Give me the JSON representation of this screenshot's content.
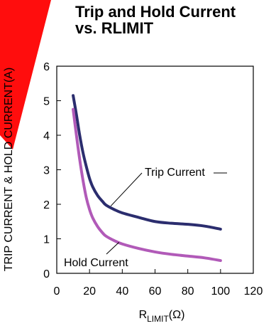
{
  "chart_data": {
    "type": "line",
    "title": "Trip and Hold Current vs. RLIMIT",
    "title_lines": [
      "Trip and Hold Current",
      "vs. RLIMIT"
    ],
    "xlabel_main": "R",
    "xlabel_sub": "LIMIT",
    "xlabel_unit": "(Ω)",
    "ylabel": "TRIP CURRENT & HOLD CURRENT(A)",
    "xlim": [
      0,
      120
    ],
    "ylim": [
      0,
      6
    ],
    "x_ticks": [
      0,
      20,
      40,
      60,
      80,
      100,
      120
    ],
    "y_ticks": [
      0,
      1,
      2,
      3,
      4,
      5,
      6
    ],
    "grid": false,
    "series": [
      {
        "name": "Trip Current",
        "color": "#2b2d6e",
        "x": [
          10,
          12,
          14,
          16,
          18,
          20,
          22,
          25,
          28,
          30,
          35,
          40,
          50,
          60,
          70,
          80,
          90,
          100
        ],
        "y": [
          5.15,
          4.6,
          4.0,
          3.5,
          3.1,
          2.75,
          2.5,
          2.25,
          2.08,
          1.98,
          1.85,
          1.75,
          1.62,
          1.5,
          1.45,
          1.42,
          1.37,
          1.28
        ]
      },
      {
        "name": "Hold Current",
        "color": "#b15ab8",
        "x": [
          10,
          12,
          14,
          16,
          18,
          20,
          22,
          25,
          28,
          30,
          35,
          40,
          50,
          60,
          70,
          80,
          90,
          100
        ],
        "y": [
          4.75,
          4.0,
          3.3,
          2.7,
          2.2,
          1.85,
          1.6,
          1.35,
          1.17,
          1.08,
          0.95,
          0.85,
          0.72,
          0.62,
          0.55,
          0.5,
          0.45,
          0.37
        ]
      }
    ],
    "annotations": [
      {
        "text": "Trip Current",
        "series": "Trip Current"
      },
      {
        "text": "Hold Current",
        "series": "Hold Current"
      }
    ]
  }
}
